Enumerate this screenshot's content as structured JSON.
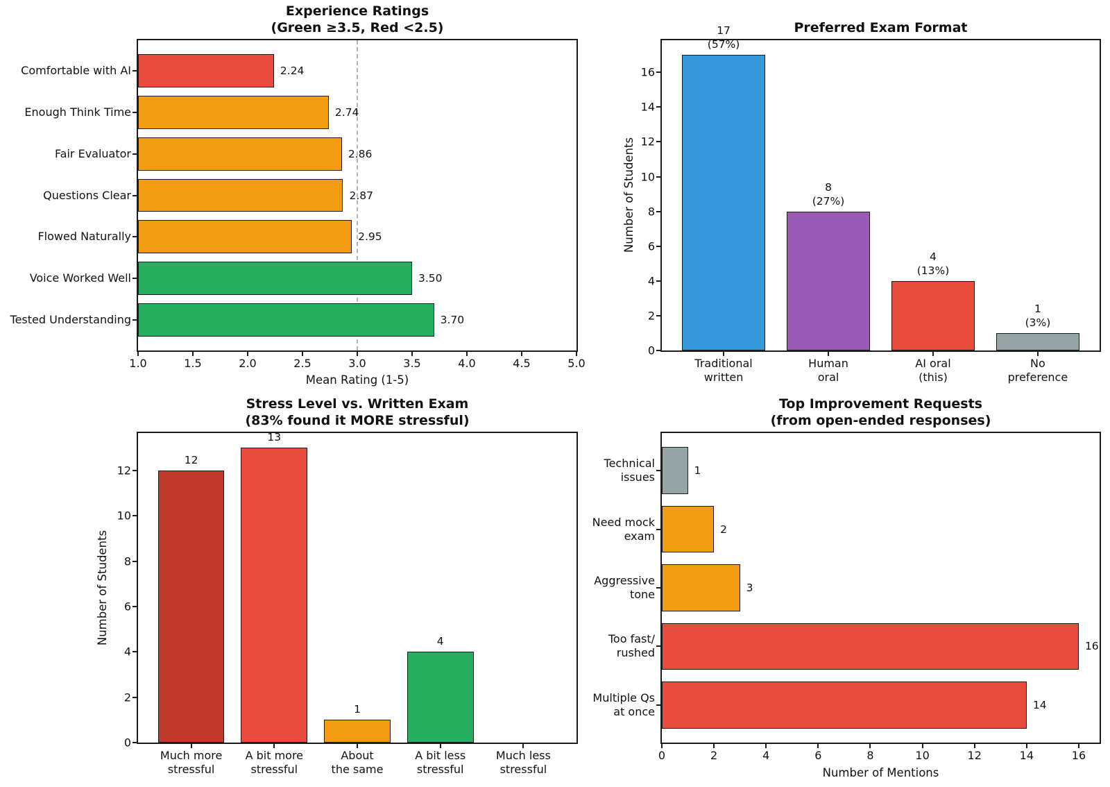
{
  "palette": {
    "red": "#e74c3c",
    "dark_red": "#c0392b",
    "orange": "#f39c12",
    "green": "#27ae60",
    "blue": "#3498db",
    "purple": "#9b59b6",
    "gray": "#95a5a6",
    "reference_line": "#b4b4b4"
  },
  "chart_data": [
    {
      "id": "experience-ratings",
      "type": "barh",
      "title": "Experience Ratings",
      "subtitle": "(Green ≥3.5, Red <2.5)",
      "categories": [
        "Comfortable with AI",
        "Enough Think Time",
        "Fair Evaluator",
        "Questions Clear",
        "Flowed Naturally",
        "Voice Worked Well",
        "Tested Understanding"
      ],
      "values": [
        2.24,
        2.74,
        2.86,
        2.87,
        2.95,
        3.5,
        3.7
      ],
      "bar_labels": [
        "2.24",
        "2.74",
        "2.86",
        "2.87",
        "2.95",
        "3.50",
        "3.70"
      ],
      "bar_colors": [
        "red",
        "orange",
        "orange",
        "orange",
        "orange",
        "green",
        "green"
      ],
      "xlabel": "Mean Rating (1-5)",
      "xlim": [
        1.0,
        5.0
      ],
      "xtick_values": [
        1.0,
        1.5,
        2.0,
        2.5,
        3.0,
        3.5,
        4.0,
        4.5,
        5.0
      ],
      "xtick_labels": [
        "1.0",
        "1.5",
        "2.0",
        "2.5",
        "3.0",
        "3.5",
        "4.0",
        "4.5",
        "5.0"
      ],
      "ref_line": {
        "x": 3.0,
        "style": "dashed"
      },
      "grid": false
    },
    {
      "id": "preferred-exam-format",
      "type": "bar",
      "title": "Preferred Exam Format",
      "subtitle": "",
      "categories": [
        "Traditional\nwritten",
        "Human\noral",
        "AI oral\n(this)",
        "No\npreference"
      ],
      "values": [
        17,
        8,
        4,
        1
      ],
      "bar_labels": [
        "17\n(57%)",
        "8\n(27%)",
        "4\n(13%)",
        "1\n(3%)"
      ],
      "bar_colors": [
        "blue",
        "purple",
        "red",
        "gray"
      ],
      "ylabel": "Number of Students",
      "ylim": [
        0,
        17.85
      ],
      "ytick_values": [
        0,
        2,
        4,
        6,
        8,
        10,
        12,
        14,
        16
      ],
      "ytick_labels": [
        "0",
        "2",
        "4",
        "6",
        "8",
        "10",
        "12",
        "14",
        "16"
      ],
      "grid": false
    },
    {
      "id": "stress-vs-written-exam",
      "type": "bar",
      "title": "Stress Level vs. Written Exam",
      "subtitle": "(83% found it MORE stressful)",
      "categories": [
        "Much more\nstressful",
        "A bit more\nstressful",
        "About\nthe same",
        "A bit less\nstressful",
        "Much less\nstressful"
      ],
      "values": [
        12,
        13,
        1,
        4,
        0
      ],
      "bar_labels": [
        "12",
        "13",
        "1",
        "4",
        ""
      ],
      "bar_colors": [
        "dark_red",
        "red",
        "orange",
        "green",
        "gray"
      ],
      "ylabel": "Number of Students",
      "ylim": [
        0,
        13.65
      ],
      "ytick_values": [
        0,
        2,
        4,
        6,
        8,
        10,
        12
      ],
      "ytick_labels": [
        "0",
        "2",
        "4",
        "6",
        "8",
        "10",
        "12"
      ],
      "grid": false
    },
    {
      "id": "top-improvement-requests",
      "type": "barh",
      "title": "Top Improvement Requests",
      "subtitle": "(from open-ended responses)",
      "categories": [
        "Technical\nissues",
        "Need mock\nexam",
        "Aggressive\ntone",
        "Too fast/\nrushed",
        "Multiple Qs\nat once"
      ],
      "values": [
        1,
        2,
        3,
        16,
        14
      ],
      "bar_labels": [
        "1",
        "2",
        "3",
        "16",
        "14"
      ],
      "bar_colors": [
        "gray",
        "orange",
        "orange",
        "red",
        "red"
      ],
      "xlabel": "Number of Mentions",
      "xlim": [
        0,
        16.8
      ],
      "xtick_values": [
        0,
        2,
        4,
        6,
        8,
        10,
        12,
        14,
        16
      ],
      "xtick_labels": [
        "0",
        "2",
        "4",
        "6",
        "8",
        "10",
        "12",
        "14",
        "16"
      ],
      "grid": false
    }
  ]
}
